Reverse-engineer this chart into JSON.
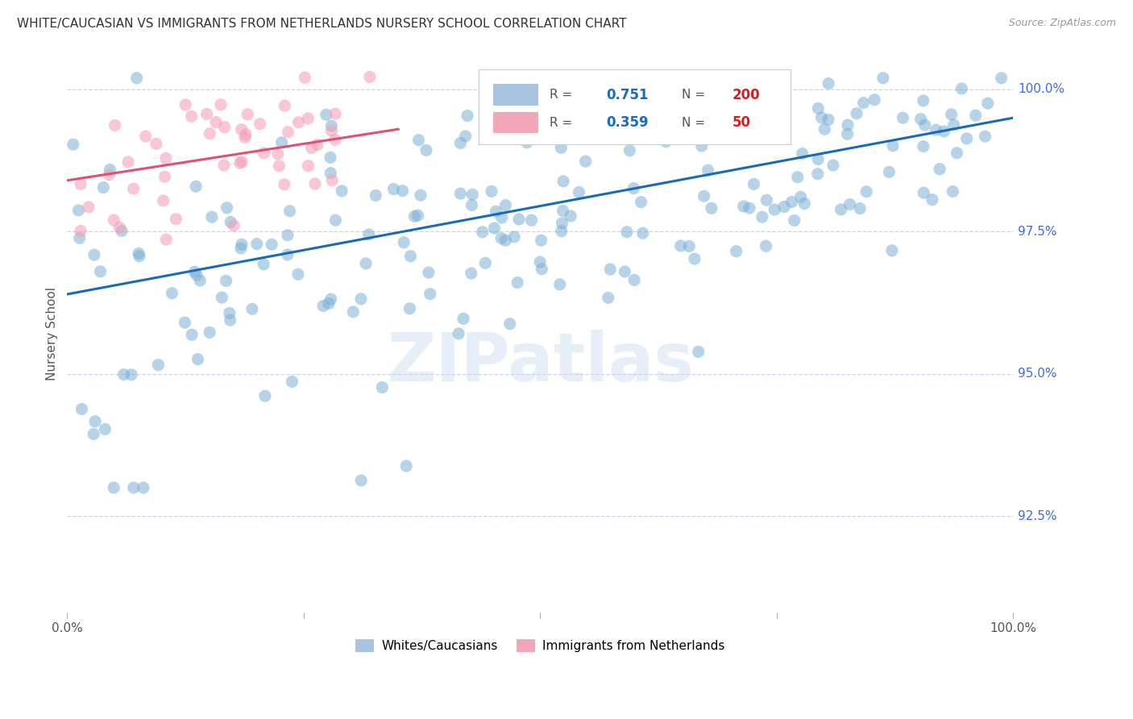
{
  "title": "WHITE/CAUCASIAN VS IMMIGRANTS FROM NETHERLANDS NURSERY SCHOOL CORRELATION CHART",
  "source": "Source: ZipAtlas.com",
  "ylabel": "Nursery School",
  "ytick_labels": [
    "92.5%",
    "95.0%",
    "97.5%",
    "100.0%"
  ],
  "ytick_values": [
    0.925,
    0.95,
    0.975,
    1.0
  ],
  "watermark": "ZIPatlas",
  "blue_scatter_color": "#7bafd4",
  "pink_scatter_color": "#f4a0b8",
  "blue_line_color": "#1a6bb5",
  "pink_line_color": "#e05070",
  "grid_color": "#c8d4e8",
  "background_color": "#ffffff",
  "right_label_color": "#4169e1",
  "title_color": "#333333",
  "blue_R": 0.751,
  "blue_N": 200,
  "pink_R": 0.359,
  "pink_N": 50,
  "x_min": 0.0,
  "x_max": 1.0,
  "y_min": 0.908,
  "y_max": 1.006,
  "blue_line_x0": 0.0,
  "blue_line_x1": 1.0,
  "blue_line_y0": 0.964,
  "blue_line_y1": 0.995,
  "pink_line_x0": 0.0,
  "pink_line_x1": 0.35,
  "pink_line_y0": 0.984,
  "pink_line_y1": 0.993
}
